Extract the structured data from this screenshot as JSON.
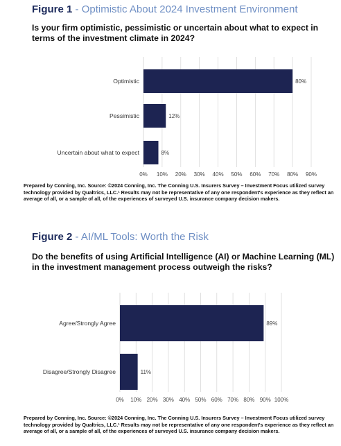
{
  "figures": [
    {
      "number": "Figure 1",
      "separator": "-",
      "title": "Optimistic About 2024 Investment Environment",
      "question": "Is your firm optimistic, pessimistic or uncertain about what to expect in terms of the investment climate in 2024?",
      "source": "Prepared by Conning, Inc. Source: ©2024 Conning, Inc. The Conning U.S. Insurers Survey – Investment Focus utilized survey technology provided by Qualtrics, LLC.¹ Results may not be representative of any one respondent's experience as they reflect an average of all, or a sample of all, of the experiences of surveyed U.S. insurance company decision makers."
    },
    {
      "number": "Figure 2",
      "separator": "-",
      "title": "AI/ML Tools: Worth the Risk",
      "question": "Do the benefits of using Artificial Intelligence (AI) or Machine Learning (ML) in the investment management process outweigh the risks?",
      "source": "Prepared by Conning, Inc. Source: ©2024 Conning, Inc. The Conning U.S. Insurers Survey – Investment Focus utilized survey technology provided by Qualtrics, LLC.¹ Results may not be representative of any one respondent's experience as they reflect an average of all, or a sample of all, of the experiences of surveyed U.S. insurance company decision makers."
    }
  ],
  "colors": {
    "bar": "#1d2452",
    "gridline": "#d9d9d9",
    "title_accent": "#6f8fc4",
    "figure_number": "#1d2b5c"
  },
  "chart_data": [
    {
      "type": "bar",
      "orientation": "horizontal",
      "categories": [
        "Optimistic",
        "Pessimistic",
        "Uncertain about what to expect"
      ],
      "values": [
        80,
        12,
        8
      ],
      "value_labels": [
        "80%",
        "12%",
        "8%"
      ],
      "xlim": [
        0,
        90
      ],
      "xticks": [
        "0%",
        "10%",
        "20%",
        "30%",
        "40%",
        "50%",
        "60%",
        "70%",
        "80%",
        "90%"
      ],
      "grid": true
    },
    {
      "type": "bar",
      "orientation": "horizontal",
      "categories": [
        "Agree/Strongly Agree",
        "Disagree/Strongly Disagree"
      ],
      "values": [
        89,
        11
      ],
      "value_labels": [
        "89%",
        "11%"
      ],
      "xlim": [
        0,
        100
      ],
      "xticks": [
        "0%",
        "10%",
        "20%",
        "30%",
        "40%",
        "50%",
        "60%",
        "70%",
        "80%",
        "90%",
        "100%"
      ],
      "grid": true
    }
  ]
}
